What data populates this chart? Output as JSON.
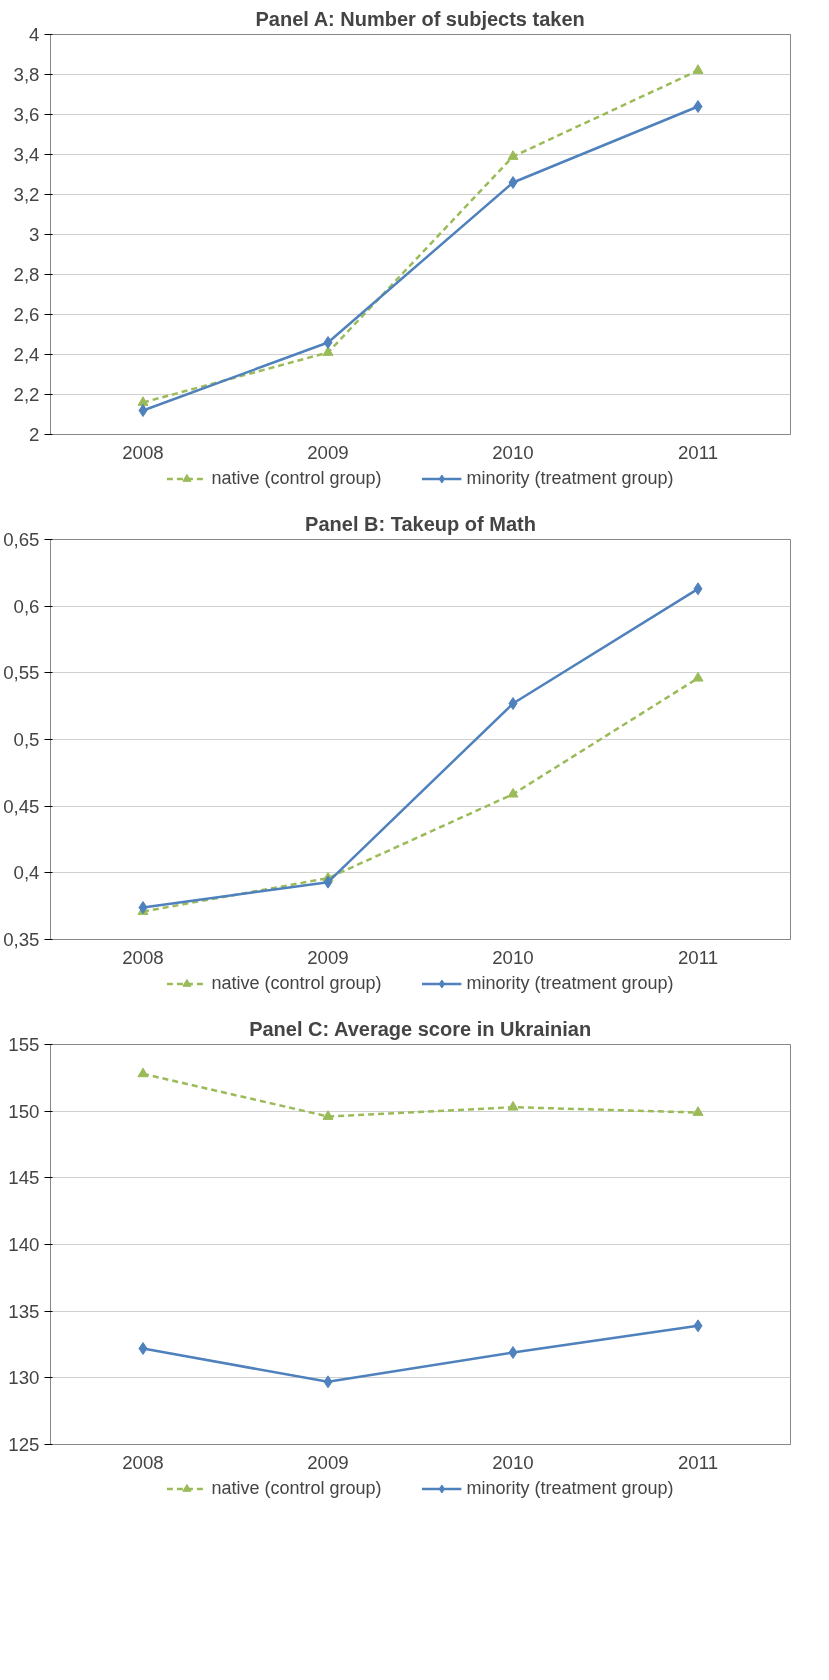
{
  "chart_data": [
    {
      "type": "line",
      "title": "Panel A: Number of subjects taken",
      "categories": [
        "2008",
        "2009",
        "2010",
        "2011"
      ],
      "series": [
        {
          "name": "native (control group)",
          "color": "#9bbb59",
          "marker": "triangle",
          "line_style": "dashed",
          "values": [
            2.16,
            2.41,
            3.39,
            3.82
          ]
        },
        {
          "name": "minority (treatment group)",
          "color": "#4f81bd",
          "marker": "diamond",
          "line_style": "solid",
          "values": [
            2.12,
            2.46,
            3.26,
            3.64
          ]
        }
      ],
      "ylim": [
        2,
        4
      ],
      "yticks": [
        2,
        {
          "value": 2.2,
          "label": "2,2"
        },
        {
          "value": 2.4,
          "label": "2,4"
        },
        {
          "value": 2.6,
          "label": "2,6"
        },
        {
          "value": 2.8,
          "label": "2,8"
        },
        3,
        {
          "value": 3.2,
          "label": "3,2"
        },
        {
          "value": 3.4,
          "label": "3,4"
        },
        {
          "value": 3.6,
          "label": "3,6"
        },
        {
          "value": 3.8,
          "label": "3,8"
        },
        4
      ],
      "grid": "y",
      "legend": "bottom"
    },
    {
      "type": "line",
      "title": "Panel B: Takeup of Math",
      "categories": [
        "2008",
        "2009",
        "2010",
        "2011"
      ],
      "series": [
        {
          "name": "native (control group)",
          "color": "#9bbb59",
          "marker": "triangle",
          "line_style": "dashed",
          "values": [
            0.371,
            0.396,
            0.459,
            0.546
          ]
        },
        {
          "name": "minority (treatment group)",
          "color": "#4f81bd",
          "marker": "diamond",
          "line_style": "solid",
          "values": [
            0.374,
            0.393,
            0.527,
            0.613
          ]
        }
      ],
      "ylim": [
        0.35,
        0.65
      ],
      "yticks": [
        {
          "value": 0.35,
          "label": "0,35"
        },
        {
          "value": 0.4,
          "label": "0,4"
        },
        {
          "value": 0.45,
          "label": "0,45"
        },
        {
          "value": 0.5,
          "label": "0,5"
        },
        {
          "value": 0.55,
          "label": "0,55"
        },
        {
          "value": 0.6,
          "label": "0,6"
        },
        {
          "value": 0.65,
          "label": "0,65"
        }
      ],
      "grid": "y",
      "legend": "bottom"
    },
    {
      "type": "line",
      "title": "Panel C: Average score in Ukrainian",
      "categories": [
        "2008",
        "2009",
        "2010",
        "2011"
      ],
      "series": [
        {
          "name": "native (control group)",
          "color": "#9bbb59",
          "marker": "triangle",
          "line_style": "dashed",
          "values": [
            152.8,
            149.6,
            150.3,
            149.9
          ]
        },
        {
          "name": "minority (treatment group)",
          "color": "#4f81bd",
          "marker": "diamond",
          "line_style": "solid",
          "values": [
            132.2,
            129.7,
            131.9,
            133.9
          ]
        }
      ],
      "ylim": [
        125,
        155
      ],
      "yticks": [
        125,
        130,
        135,
        140,
        145,
        150,
        155
      ],
      "grid": "y",
      "legend": "bottom"
    }
  ]
}
